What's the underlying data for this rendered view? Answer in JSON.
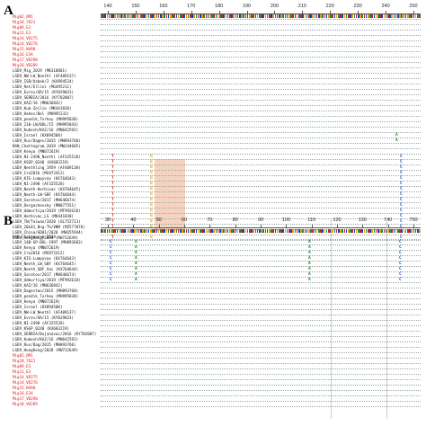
{
  "panels": {
    "A": {
      "letter": "A",
      "ruler_ticks": [
        "140",
        "150",
        "160",
        "170",
        "180",
        "190",
        "200",
        "210",
        "220",
        "230",
        "240",
        "250"
      ],
      "sequences": [
        {
          "name": "Mig02_OM1",
          "color": "red"
        },
        {
          "name": "Mig18_7621",
          "color": "red"
        },
        {
          "name": "Mig09_E3",
          "color": "red"
        },
        {
          "name": "Mig11_E3",
          "color": "red"
        },
        {
          "name": "Mig14_VD275",
          "color": "red"
        },
        {
          "name": "Mig14_VD276",
          "color": "red"
        },
        {
          "name": "Mig15_N490",
          "color": "red"
        },
        {
          "name": "Mig16_E3A",
          "color": "red"
        },
        {
          "name": "Mig17_VD290",
          "color": "red"
        },
        {
          "name": "Mig18_VD289",
          "color": "red"
        },
        {
          "name": "LSDV_Mig_2019 (MK318801)",
          "color": "black"
        },
        {
          "name": "LSDV_NW-LW_Neethl (AF409137)",
          "color": "black"
        },
        {
          "name": "LSDV_ISR/Uzbek/2 (KX894524)",
          "color": "black"
        },
        {
          "name": "LSDV_Ret/Ellini (MG495211)",
          "color": "black"
        },
        {
          "name": "LSDV_Evros/GR/15 (KY829023)",
          "color": "black"
        },
        {
          "name": "LSDV_SERBIA/2016 (KY702007)",
          "color": "black"
        },
        {
          "name": "LSDV_KAZ/16 (MN636842)",
          "color": "black"
        },
        {
          "name": "LSDV_Kub-Zeilie (MK441838)",
          "color": "black"
        },
        {
          "name": "LSDV_Hahes/Bel (MH995232)",
          "color": "black"
        },
        {
          "name": "LSDV_pendik_Turkey (MH995838)",
          "color": "black"
        },
        {
          "name": "LSDV_210-LW/BOL/15 (MH995843)",
          "color": "black"
        },
        {
          "name": "LSDV_Kubesh/KAZ/16 (MN642592)",
          "color": "black"
        },
        {
          "name": "LSDV_Israel (KX894508)",
          "color": "black"
        },
        {
          "name": "LSDV_Rus/Dages/2015 (MH893760)",
          "color": "black"
        },
        {
          "name": "BAN_Chattogram_2019 (MW144685)",
          "color": "black"
        },
        {
          "name": "LSDV_Kenya (MN072619)",
          "color": "black"
        },
        {
          "name": "LSDV_NI-2490_Neethl (AF325528)",
          "color": "black"
        },
        {
          "name": "LSDV_KSGP_0240 (KX683219)",
          "color": "black"
        },
        {
          "name": "LSDV_Neethling_1959 (AF409138)",
          "color": "black"
        },
        {
          "name": "LSDV_Cro2016 (MG972412)",
          "color": "black"
        },
        {
          "name": "LSDV_KIS-Lumpyvax (KX764643)",
          "color": "black"
        },
        {
          "name": "LSDV_NI-2490 (AF325528)",
          "color": "black"
        },
        {
          "name": "LSDV_Neeth-Herbivac (KX764645)",
          "color": "black"
        },
        {
          "name": "LSDV_Neeth-LW-SBF (KX764644)",
          "color": "black"
        },
        {
          "name": "LSDV_Saratov/2017 (MH646674)",
          "color": "black"
        },
        {
          "name": "LSDV_Dergachevsky (MN077551)",
          "color": "black"
        },
        {
          "name": "LSDV_Udmurtiya/2019 (MT992618)",
          "color": "black"
        },
        {
          "name": "LSDV_Herbivac_LS (MK441838)",
          "color": "black"
        },
        {
          "name": "LSDV_TW/Taiwan/2020 (OL752713)",
          "color": "black"
        },
        {
          "name": "LSDV_20L81_Bng-Th/VNM (MZ577076)",
          "color": "black"
        },
        {
          "name": "LSDV_China/GD01/2020 (MW355944)",
          "color": "black"
        },
        {
          "name": "LSDV_HongKong/2020 (MW732649)",
          "color": "black"
        }
      ]
    },
    "B": {
      "letter": "B",
      "ruler_ticks": [
        "30",
        "40",
        "50",
        "60",
        "70",
        "80",
        "90",
        "100",
        "110",
        "120",
        "130",
        "740",
        "750"
      ],
      "sequences": [
        {
          "name": "BAN_Chattogram_2019",
          "color": "black"
        },
        {
          "name": "LSDV_14B-GP-BGL-1997 (MH893663)",
          "color": "black"
        },
        {
          "name": "LSDV_Kenya (MN072619)",
          "color": "black"
        },
        {
          "name": "LSDV_Cro2016 (MG972412)",
          "color": "black"
        },
        {
          "name": "LSDV_KIS-Lumpyvax (KX764643)",
          "color": "black"
        },
        {
          "name": "LSDV_Neeth_LW_SBF (KX764645)",
          "color": "black"
        },
        {
          "name": "LSDV_Neeth_SBF_Vac (KX764644)",
          "color": "black"
        },
        {
          "name": "LSDV_Saratov/2017 (MH646674)",
          "color": "black"
        },
        {
          "name": "LSDV_Udmurtiya/2019 (MT992618)",
          "color": "black"
        },
        {
          "name": "LSDV_KAZ/16 (MN636842)",
          "color": "black"
        },
        {
          "name": "LSDV_Dagestan/2015 (MH893760)",
          "color": "black"
        },
        {
          "name": "LSDV_pendik_Turkey (MH995838)",
          "color": "black"
        },
        {
          "name": "LSDV_Kenya (MN072619)",
          "color": "black"
        },
        {
          "name": "LSDV_Israel (KX894508)",
          "color": "black"
        },
        {
          "name": "LSDV_NW-LW_Neethl (AF409137)",
          "color": "black"
        },
        {
          "name": "LSDV_Evros/GR/15 (KY829023)",
          "color": "black"
        },
        {
          "name": "LSDV_NI-2490 (AF325528)",
          "color": "black"
        },
        {
          "name": "LSDV_KSGP_0240 (KX683219)",
          "color": "black"
        },
        {
          "name": "LSDV_SERBIA/Bujanovac/2016 (KY702007)",
          "color": "black"
        },
        {
          "name": "LSDV_Kubesh/KAZ/16 (MN642592)",
          "color": "black"
        },
        {
          "name": "LSDV_Rus/Dag/2015 (MH893760)",
          "color": "black"
        },
        {
          "name": "LSDV_HongKong/2020 (MW732649)",
          "color": "black"
        },
        {
          "name": "Mig02_OM1",
          "color": "red"
        },
        {
          "name": "Mig18_7621",
          "color": "red"
        },
        {
          "name": "Mig09_E3",
          "color": "red"
        },
        {
          "name": "Mig11_E3",
          "color": "red"
        },
        {
          "name": "Mig14_VD275",
          "color": "red"
        },
        {
          "name": "Mig14_VD276",
          "color": "red"
        },
        {
          "name": "Mig15_N490",
          "color": "red"
        },
        {
          "name": "Mig16_E3A",
          "color": "red"
        },
        {
          "name": "Mig17_VD290",
          "color": "red"
        },
        {
          "name": "Mig18_VD289",
          "color": "red"
        }
      ]
    }
  },
  "colors": {
    "ref_bases": [
      "#2a8a2a",
      "#d42020",
      "#1a3fbf",
      "#e0a010"
    ],
    "shade": "#f6d3c0",
    "variant_T": "#d42020",
    "variant_G": "#e0a010",
    "variant_C": "#1a3fbf",
    "variant_A": "#2a8a2a"
  }
}
